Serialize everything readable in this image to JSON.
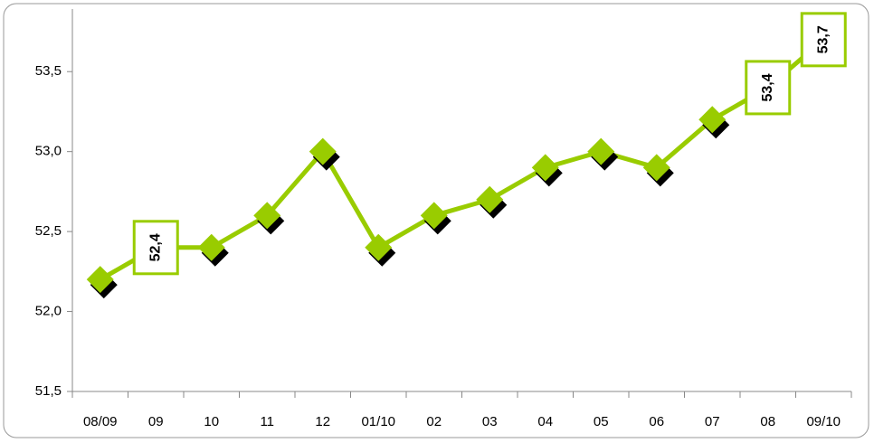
{
  "chart_data": {
    "type": "line",
    "categories": [
      "08/09",
      "09",
      "10",
      "11",
      "12",
      "01/10",
      "02",
      "03",
      "04",
      "05",
      "06",
      "07",
      "08",
      "09/10"
    ],
    "series": [
      {
        "color": "#99cc00",
        "values": [
          52.2,
          52.4,
          52.4,
          52.6,
          53.0,
          52.4,
          52.6,
          52.7,
          52.9,
          53.0,
          52.9,
          53.2,
          53.4,
          53.7
        ],
        "value_labels": [
          null,
          "52,4",
          null,
          null,
          null,
          null,
          null,
          null,
          null,
          null,
          null,
          null,
          "53,4",
          "53,7"
        ]
      }
    ],
    "ylim": [
      51.5,
      53.75
    ],
    "yticks": [
      {
        "value": 51.5,
        "label": "51,5"
      },
      {
        "value": 52.0,
        "label": "52,0"
      },
      {
        "value": 52.5,
        "label": "52,5"
      },
      {
        "value": 53.0,
        "label": "53,0"
      },
      {
        "value": 53.5,
        "label": "53,5"
      }
    ],
    "grid": false
  }
}
